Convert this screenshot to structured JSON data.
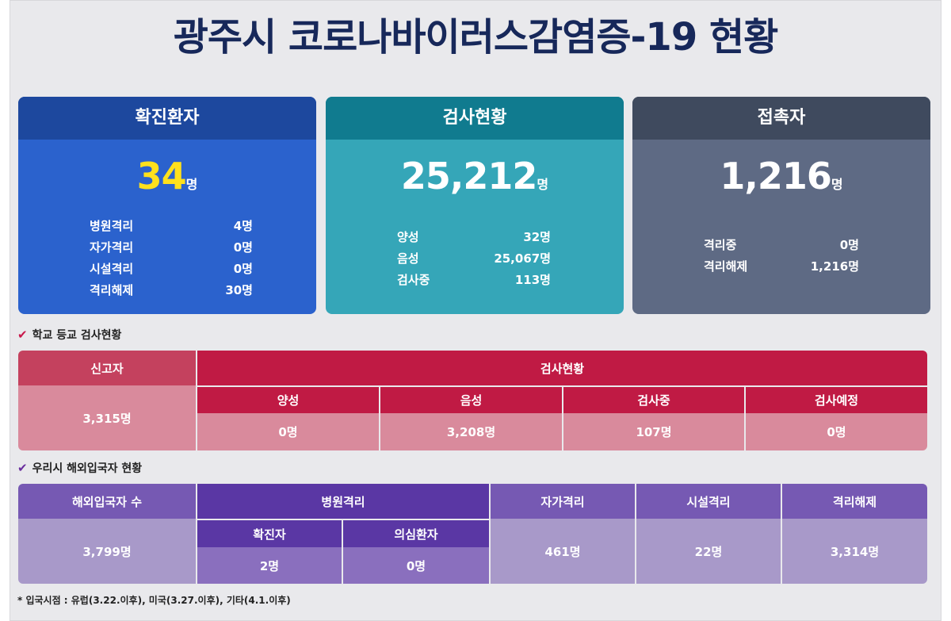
{
  "title": "광주시 코로나바이러스감염증-19 현황",
  "cards": {
    "confirmed": {
      "header": "확진환자",
      "total": "34",
      "unit": "명",
      "rows": [
        {
          "label": "병원격리",
          "value": "4명"
        },
        {
          "label": "자가격리",
          "value": "0명"
        },
        {
          "label": "시설격리",
          "value": "0명"
        },
        {
          "label": "격리해제",
          "value": "30명"
        }
      ]
    },
    "tests": {
      "header": "검사현황",
      "total": "25,212",
      "unit": "명",
      "rows": [
        {
          "label": "양성",
          "value": "32명"
        },
        {
          "label": "음성",
          "value": "25,067명"
        },
        {
          "label": "검사중",
          "value": "113명"
        }
      ]
    },
    "contacts": {
      "header": "접촉자",
      "total": "1,216",
      "unit": "명",
      "rows": [
        {
          "label": "격리중",
          "value": "0명"
        },
        {
          "label": "격리해제",
          "value": "1,216명"
        }
      ]
    }
  },
  "school": {
    "section_label": "학교 등교 검사현황",
    "reporter_header": "신고자",
    "reporter_value": "3,315명",
    "tests_header": "검사현황",
    "columns": [
      {
        "header": "양성",
        "value": "0명"
      },
      {
        "header": "음성",
        "value": "3,208명"
      },
      {
        "header": "검사중",
        "value": "107명"
      },
      {
        "header": "검사예정",
        "value": "0명"
      }
    ]
  },
  "overseas": {
    "section_label": "우리시 해외입국자 현황",
    "arrivals_header": "해외입국자 수",
    "arrivals_value": "3,799명",
    "hospital_header": "병원격리",
    "confirmed_header": "확진자",
    "confirmed_value": "2명",
    "suspected_header": "의심환자",
    "suspected_value": "0명",
    "self_header": "자가격리",
    "self_value": "461명",
    "facility_header": "시설격리",
    "facility_value": "22명",
    "released_header": "격리해제",
    "released_value": "3,314명"
  },
  "footnote": "* 입국시점 : 유럽(3.22.이후), 미국(3.27.이후), 기타(4.1.이후)",
  "colors": {
    "title": "#17285a",
    "confirmed_accent": "#ffe11c",
    "school_dark": "#c01a44",
    "school_light": "#d98a9c",
    "overseas_dark": "#5a37a4",
    "overseas_light": "#a899c9"
  }
}
